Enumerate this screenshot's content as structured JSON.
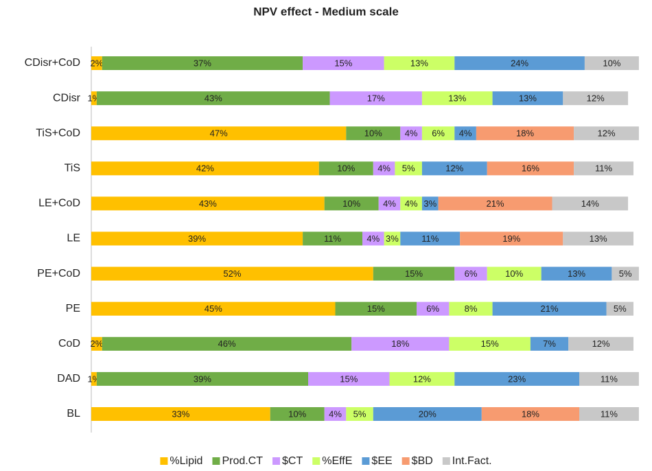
{
  "chart_data": {
    "type": "stacked-barh",
    "title": "NPV effect - Medium scale",
    "categories": [
      "CDisr+CoD",
      "CDisr",
      "TiS+CoD",
      "TiS",
      "LE+CoD",
      "LE",
      "PE+CoD",
      "PE",
      "CoD",
      "DAD",
      "BL"
    ],
    "series": [
      {
        "name": "%Lipid",
        "color": "#ffc000",
        "values": [
          2,
          1,
          47,
          42,
          43,
          39,
          52,
          45,
          2,
          1,
          33
        ],
        "value_labels": [
          "2%",
          "1%",
          "47%",
          "42%",
          "43%",
          "39%",
          "52%",
          "45%",
          "2%",
          "1%",
          "33%"
        ]
      },
      {
        "name": "Prod.CT",
        "color": "#70ad47",
        "values": [
          37,
          43,
          10,
          10,
          10,
          11,
          15,
          15,
          46,
          39,
          10
        ],
        "value_labels": [
          "37%",
          "43%",
          "10%",
          "10%",
          "10%",
          "11%",
          "15%",
          "15%",
          "46%",
          "39%",
          "10%"
        ]
      },
      {
        "name": "$CT",
        "color": "#cc99ff",
        "values": [
          15,
          17,
          4,
          4,
          4,
          4,
          6,
          6,
          18,
          15,
          4
        ],
        "value_labels": [
          "15%",
          "17%",
          "4%",
          "4%",
          "4%",
          "4%",
          "6%",
          "6%",
          "18%",
          "15%",
          "4%"
        ]
      },
      {
        "name": "%EffE",
        "color": "#ccff66",
        "values": [
          13,
          13,
          6,
          5,
          4,
          3,
          10,
          8,
          15,
          12,
          5
        ],
        "value_labels": [
          "13%",
          "13%",
          "6%",
          "5%",
          "4%",
          "3%",
          "10%",
          "8%",
          "15%",
          "12%",
          "5%"
        ]
      },
      {
        "name": "$EE",
        "color": "#5b9bd5",
        "values": [
          24,
          13,
          4,
          12,
          3,
          11,
          13,
          21,
          7,
          23,
          20
        ],
        "value_labels": [
          "24%",
          "13%",
          "4%",
          "12%",
          "3%",
          "11%",
          "13%",
          "21%",
          "7%",
          "23%",
          "20%"
        ]
      },
      {
        "name": "$BD",
        "color": "#f79b70",
        "values": [
          null,
          null,
          18,
          16,
          21,
          19,
          null,
          null,
          null,
          null,
          18
        ],
        "value_labels": [
          null,
          null,
          "18%",
          "16%",
          "21%",
          "19%",
          null,
          null,
          null,
          null,
          "18%"
        ]
      },
      {
        "name": "Int.Fact.",
        "color": "#c8c8c8",
        "values": [
          10,
          12,
          12,
          11,
          14,
          13,
          5,
          5,
          12,
          11,
          11
        ],
        "value_labels": [
          "10%",
          "12%",
          "12%",
          "11%",
          "14%",
          "13%",
          "5%",
          "5%",
          "12%",
          "11%",
          "11%"
        ]
      }
    ]
  }
}
